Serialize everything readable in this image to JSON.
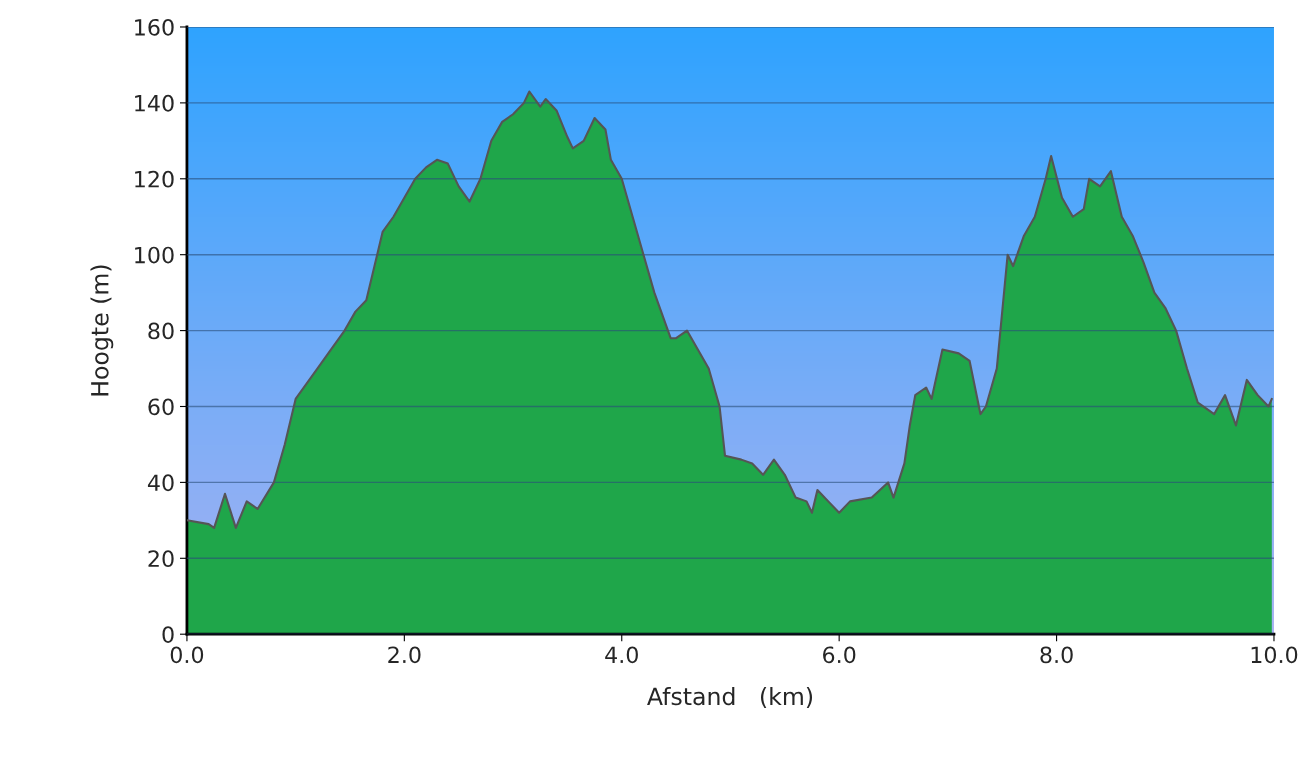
{
  "chart_data": {
    "type": "area",
    "xlabel": "Afstand   (km)",
    "ylabel": "Hoogte (m)",
    "x": [
      0,
      0.2,
      0.25,
      0.35,
      0.45,
      0.55,
      0.65,
      0.8,
      0.9,
      1.0,
      1.2,
      1.3,
      1.45,
      1.55,
      1.65,
      1.75,
      1.8,
      1.9,
      2.0,
      2.1,
      2.2,
      2.3,
      2.4,
      2.5,
      2.6,
      2.7,
      2.8,
      2.9,
      3.0,
      3.1,
      3.15,
      3.25,
      3.3,
      3.4,
      3.5,
      3.55,
      3.65,
      3.75,
      3.85,
      3.9,
      4.0,
      4.1,
      4.2,
      4.3,
      4.45,
      4.5,
      4.6,
      4.7,
      4.8,
      4.9,
      4.95,
      5.1,
      5.2,
      5.3,
      5.4,
      5.5,
      5.6,
      5.7,
      5.75,
      5.8,
      5.9,
      6.0,
      6.1,
      6.3,
      6.45,
      6.5,
      6.6,
      6.65,
      6.7,
      6.8,
      6.85,
      6.95,
      7.1,
      7.2,
      7.3,
      7.35,
      7.45,
      7.55,
      7.6,
      7.7,
      7.8,
      7.9,
      7.95,
      8.05,
      8.15,
      8.25,
      8.3,
      8.4,
      8.5,
      8.6,
      8.7,
      8.8,
      8.9,
      9.0,
      9.1,
      9.2,
      9.3,
      9.45,
      9.55,
      9.65,
      9.75,
      9.85,
      9.95,
      9.98
    ],
    "series": [
      {
        "color": "#1fa64a",
        "values": [
          30,
          29,
          28,
          37,
          28,
          35,
          33,
          40,
          50,
          62,
          70,
          74,
          80,
          85,
          88,
          100,
          106,
          110,
          115,
          120,
          123,
          125,
          124,
          118,
          114,
          120,
          130,
          135,
          137,
          140,
          143,
          139,
          141,
          138,
          131,
          128,
          130,
          136,
          133,
          125,
          120,
          110,
          100,
          90,
          78,
          78,
          80,
          75,
          70,
          60,
          47,
          46,
          45,
          42,
          46,
          42,
          36,
          35,
          32,
          38,
          35,
          32,
          35,
          36,
          40,
          36,
          45,
          55,
          63,
          65,
          62,
          75,
          74,
          72,
          58,
          60,
          70,
          100,
          97,
          105,
          110,
          120,
          126,
          115,
          110,
          112,
          120,
          118,
          122,
          110,
          105,
          98,
          90,
          86,
          80,
          70,
          61,
          58,
          63,
          55,
          67,
          63,
          60,
          62
        ]
      }
    ],
    "xlim": [
      0,
      10.0
    ],
    "xticks": [
      {
        "value": 0,
        "label": "0.0"
      },
      {
        "value": 2,
        "label": "2.0"
      },
      {
        "value": 4,
        "label": "4.0"
      },
      {
        "value": 6,
        "label": "6.0"
      },
      {
        "value": 8,
        "label": "8.0"
      },
      {
        "value": 10,
        "label": "10.0"
      }
    ],
    "ylim": [
      0,
      160
    ],
    "yticks": [
      0,
      20,
      40,
      60,
      80,
      100,
      120,
      140,
      160
    ],
    "grid": "y"
  }
}
